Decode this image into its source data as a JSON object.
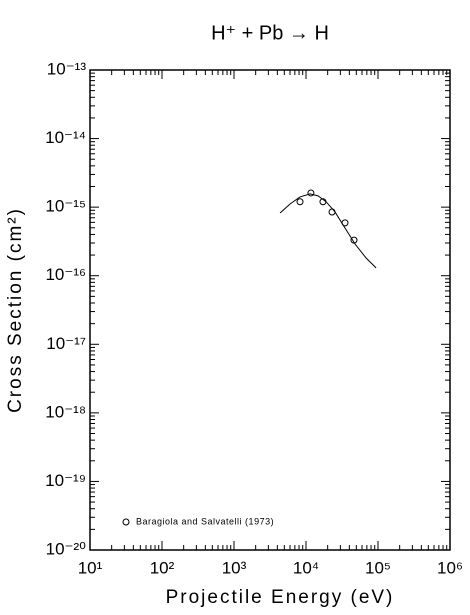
{
  "chart_data": {
    "type": "scatter",
    "title": "H⁺ + Pb → H",
    "x_label": "Projectile Energy (eV)",
    "y_label": "Cross Section (cm²)",
    "xscale": "log",
    "yscale": "log",
    "xlim": [
      10,
      1000000
    ],
    "ylim": [
      1e-20,
      1e-13
    ],
    "xticks": [
      {
        "value": 10,
        "label": "10¹"
      },
      {
        "value": 100,
        "label": "10²"
      },
      {
        "value": 1000,
        "label": "10³"
      },
      {
        "value": 10000,
        "label": "10⁴"
      },
      {
        "value": 100000,
        "label": "10⁵"
      },
      {
        "value": 1000000,
        "label": "10⁶"
      }
    ],
    "yticks": [
      {
        "value": 1e-20,
        "label": "10⁻²⁰"
      },
      {
        "value": 1e-19,
        "label": "10⁻¹⁹"
      },
      {
        "value": 1e-18,
        "label": "10⁻¹⁸"
      },
      {
        "value": 1e-17,
        "label": "10⁻¹⁷"
      },
      {
        "value": 1e-16,
        "label": "10⁻¹⁶"
      },
      {
        "value": 1e-15,
        "label": "10⁻¹⁵"
      },
      {
        "value": 1e-14,
        "label": "10⁻¹⁴"
      },
      {
        "value": 1e-13,
        "label": "10⁻¹³"
      }
    ],
    "minor_ticks": true,
    "grid": false,
    "legend": "lower left",
    "series": [
      {
        "name": "Baragiola and Salvatelli (1973)",
        "style": "markers",
        "marker": "circle",
        "color": "#000000",
        "x": [
          8260,
          11700,
          17200,
          23000,
          34800,
          46400
        ],
        "values": [
          1.2e-15,
          1.61e-15,
          1.2e-15,
          8.5e-16,
          5.9e-16,
          3.3e-16
        ]
      },
      {
        "style": "line",
        "color": "#000000",
        "x": [
          4360,
          6000,
          8260,
          11400,
          14700,
          19000,
          25300,
          34800,
          48000,
          68100,
          94000
        ],
        "values": [
          8.2e-16,
          1.11e-15,
          1.41e-15,
          1.56e-15,
          1.46e-15,
          1.2e-15,
          8.5e-16,
          4.97e-16,
          2.9e-16,
          1.82e-16,
          1.3e-16
        ]
      }
    ]
  }
}
